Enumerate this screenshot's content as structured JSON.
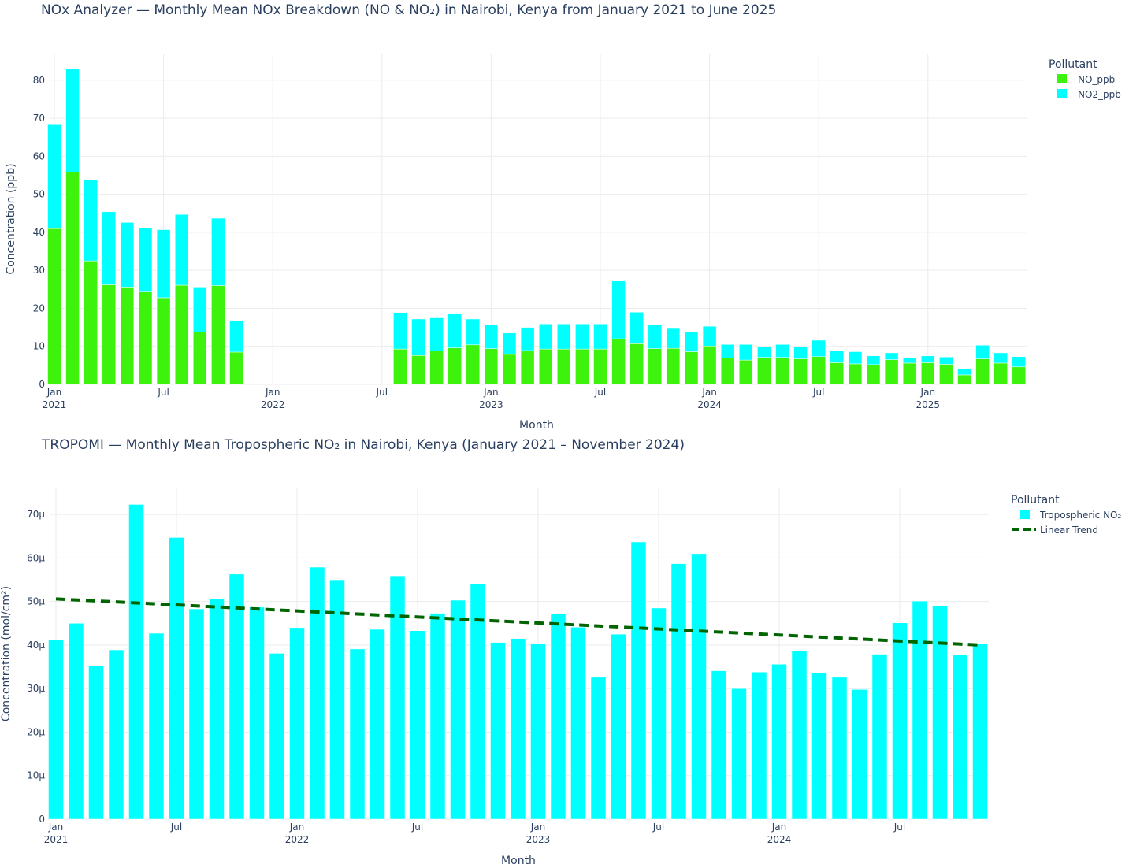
{
  "chart_data": [
    {
      "type": "bar",
      "barmode": "stack",
      "title": "NOx Analyzer — Monthly Mean NOx Breakdown (NO & NO₂) in Nairobi, Kenya from January 2021 to June 2025",
      "xlabel": "Month",
      "ylabel": "Concentration (ppb)",
      "ylim": [
        0,
        87
      ],
      "yticks": [
        "0",
        "10",
        "20",
        "30",
        "40",
        "50",
        "60",
        "70",
        "80"
      ],
      "xticks": [
        {
          "label": "Jan",
          "year": "2021",
          "month": "2021-01"
        },
        {
          "label": "Jul",
          "year": "",
          "month": "2021-07"
        },
        {
          "label": "Jan",
          "year": "2022",
          "month": "2022-01"
        },
        {
          "label": "Jul",
          "year": "",
          "month": "2022-07"
        },
        {
          "label": "Jan",
          "year": "2023",
          "month": "2023-01"
        },
        {
          "label": "Jul",
          "year": "",
          "month": "2023-07"
        },
        {
          "label": "Jan",
          "year": "2024",
          "month": "2024-01"
        },
        {
          "label": "Jul",
          "year": "",
          "month": "2024-07"
        },
        {
          "label": "Jan",
          "year": "2025",
          "month": "2025-01"
        }
      ],
      "grid": true,
      "legend_title": "Pollutant",
      "legend_position": "top-right",
      "x": [
        "2021-01",
        "2021-02",
        "2021-03",
        "2021-04",
        "2021-05",
        "2021-06",
        "2021-07",
        "2021-08",
        "2021-09",
        "2021-10",
        "2021-11",
        "2022-08",
        "2022-09",
        "2022-10",
        "2022-11",
        "2022-12",
        "2023-01",
        "2023-02",
        "2023-03",
        "2023-04",
        "2023-05",
        "2023-06",
        "2023-07",
        "2023-08",
        "2023-09",
        "2023-10",
        "2023-11",
        "2023-12",
        "2024-01",
        "2024-02",
        "2024-03",
        "2024-04",
        "2024-05",
        "2024-06",
        "2024-07",
        "2024-08",
        "2024-09",
        "2024-10",
        "2024-11",
        "2024-12",
        "2025-01",
        "2025-02",
        "2025-03",
        "2025-04",
        "2025-05",
        "2025-06"
      ],
      "series": [
        {
          "name": "NO_ppb",
          "color": "#3df20c",
          "values": [
            41,
            55.8,
            32.5,
            26.2,
            25.4,
            24.3,
            22.8,
            26.1,
            13.8,
            26,
            8.5,
            9.3,
            7.6,
            8.8,
            9.6,
            10.4,
            9.4,
            7.9,
            8.9,
            9.3,
            9.3,
            9.3,
            9.3,
            12,
            10.7,
            9.4,
            9.5,
            8.6,
            10.1,
            6.9,
            6.4,
            7.1,
            7.1,
            6.7,
            7.3,
            5.7,
            5.4,
            5.2,
            6.5,
            5.6,
            5.7,
            5.3,
            2.5,
            6.7,
            5.6,
            4.6
          ]
        },
        {
          "name": "NO2_ppb",
          "color": "#00ffff",
          "values": [
            27.3,
            27.2,
            21.3,
            19.2,
            17.2,
            16.9,
            17.9,
            18.6,
            11.6,
            17.7,
            8.3,
            9.5,
            9.6,
            8.7,
            8.9,
            6.8,
            6.3,
            5.6,
            6.1,
            6.6,
            6.6,
            6.6,
            6.6,
            15.2,
            8.3,
            6.4,
            5.2,
            5.3,
            5.2,
            3.6,
            4.1,
            2.8,
            3.4,
            3.2,
            4.3,
            3.2,
            3.2,
            2.3,
            1.8,
            1.5,
            1.8,
            1.9,
            1.7,
            3.6,
            2.7,
            2.7
          ]
        }
      ]
    },
    {
      "type": "bar",
      "title": "TROPOMI — Monthly Mean Tropospheric NO₂ in Nairobi, Kenya (January 2021 – November 2024)",
      "xlabel": "Month",
      "ylabel": "Concentration (mol/cm²)",
      "ylim": [
        0,
        76
      ],
      "yunit": "µ",
      "yticks": [
        "0",
        "10µ",
        "20µ",
        "30µ",
        "40µ",
        "50µ",
        "60µ",
        "70µ"
      ],
      "xticks": [
        {
          "label": "Jan",
          "year": "2021",
          "month": "2021-01"
        },
        {
          "label": "Jul",
          "year": "",
          "month": "2021-07"
        },
        {
          "label": "Jan",
          "year": "2022",
          "month": "2022-01"
        },
        {
          "label": "Jul",
          "year": "",
          "month": "2022-07"
        },
        {
          "label": "Jan",
          "year": "2023",
          "month": "2023-01"
        },
        {
          "label": "Jul",
          "year": "",
          "month": "2023-07"
        },
        {
          "label": "Jan",
          "year": "2024",
          "month": "2024-01"
        },
        {
          "label": "Jul",
          "year": "",
          "month": "2024-07"
        }
      ],
      "grid": true,
      "legend_title": "Pollutant",
      "legend_position": "top-right",
      "x": [
        "2021-01",
        "2021-02",
        "2021-03",
        "2021-04",
        "2021-05",
        "2021-06",
        "2021-07",
        "2021-08",
        "2021-09",
        "2021-10",
        "2021-11",
        "2021-12",
        "2022-01",
        "2022-02",
        "2022-03",
        "2022-04",
        "2022-05",
        "2022-06",
        "2022-07",
        "2022-08",
        "2022-09",
        "2022-10",
        "2022-11",
        "2022-12",
        "2023-01",
        "2023-02",
        "2023-03",
        "2023-04",
        "2023-05",
        "2023-06",
        "2023-07",
        "2023-08",
        "2023-09",
        "2023-10",
        "2023-11",
        "2023-12",
        "2024-01",
        "2024-02",
        "2024-03",
        "2024-04",
        "2024-05",
        "2024-06",
        "2024-07",
        "2024-08",
        "2024-09",
        "2024-10",
        "2024-11"
      ],
      "series": [
        {
          "name": "Tropospheric NO₂",
          "color": "#00ffff",
          "values": [
            41.2,
            45,
            35.3,
            38.9,
            72.3,
            42.7,
            64.7,
            48.3,
            50.6,
            56.3,
            48.7,
            38.1,
            44,
            57.9,
            55,
            39.1,
            43.6,
            55.9,
            43.3,
            47.3,
            50.3,
            54.1,
            40.6,
            41.5,
            40.4,
            47.2,
            44.1,
            32.6,
            42.5,
            63.7,
            48.5,
            58.7,
            61,
            34.1,
            30,
            33.8,
            35.6,
            38.7,
            33.6,
            32.6,
            29.8,
            37.9,
            45.1,
            50.1,
            49,
            37.8,
            40.3
          ]
        },
        {
          "name": "Linear Trend",
          "color": "#006400",
          "dash": "dash",
          "start": 50.6,
          "end": 40
        }
      ]
    }
  ]
}
